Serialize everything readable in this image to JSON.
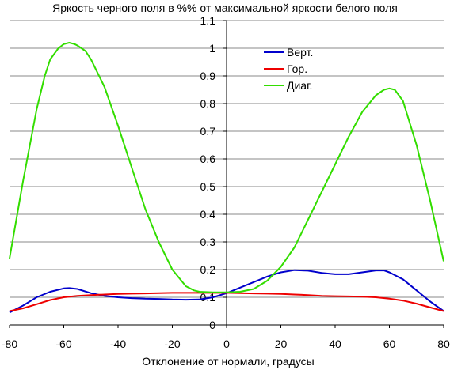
{
  "chart_data": {
    "type": "line",
    "title": "Яркость черного поля в %% от максимальной яркости белого поля",
    "xlabel": "Отклонение от нормали, градусы",
    "ylabel": "",
    "xlim": [
      -80,
      80
    ],
    "ylim": [
      0,
      1.1
    ],
    "x_ticks": [
      "-80",
      "-60",
      "-40",
      "-20",
      "0",
      "20",
      "40",
      "60",
      "80"
    ],
    "y_ticks": [
      "0",
      "0.1",
      "0.2",
      "0.3",
      "0.4",
      "0.5",
      "0.6",
      "0.7",
      "0.8",
      "0.9",
      "1",
      "1.1"
    ],
    "grid": "horizontal",
    "legend_position": "top-right",
    "series": [
      {
        "name": "Верт.",
        "color": "#0000cc",
        "x": [
          -80,
          -75,
          -70,
          -65,
          -60,
          -58,
          -55,
          -50,
          -45,
          -40,
          -35,
          -30,
          -25,
          -20,
          -15,
          -10,
          -5,
          0,
          5,
          10,
          15,
          20,
          25,
          30,
          35,
          40,
          45,
          50,
          55,
          58,
          60,
          65,
          70,
          75,
          80
        ],
        "y": [
          0.045,
          0.07,
          0.1,
          0.12,
          0.132,
          0.133,
          0.13,
          0.115,
          0.105,
          0.1,
          0.097,
          0.095,
          0.094,
          0.092,
          0.091,
          0.092,
          0.1,
          0.115,
          0.135,
          0.155,
          0.175,
          0.19,
          0.198,
          0.196,
          0.188,
          0.183,
          0.183,
          0.19,
          0.197,
          0.197,
          0.19,
          0.165,
          0.125,
          0.085,
          0.05
        ]
      },
      {
        "name": "Гор.",
        "color": "#ee0000",
        "x": [
          -80,
          -75,
          -70,
          -65,
          -60,
          -55,
          -50,
          -45,
          -40,
          -35,
          -30,
          -25,
          -20,
          -15,
          -10,
          -5,
          0,
          5,
          10,
          15,
          20,
          25,
          30,
          35,
          40,
          45,
          50,
          55,
          60,
          65,
          70,
          75,
          80
        ],
        "y": [
          0.05,
          0.06,
          0.075,
          0.09,
          0.1,
          0.105,
          0.108,
          0.11,
          0.112,
          0.113,
          0.114,
          0.115,
          0.116,
          0.116,
          0.116,
          0.116,
          0.116,
          0.115,
          0.114,
          0.113,
          0.112,
          0.11,
          0.108,
          0.105,
          0.104,
          0.103,
          0.102,
          0.1,
          0.095,
          0.088,
          0.077,
          0.063,
          0.05
        ]
      },
      {
        "name": "Диаг.",
        "color": "#33dd00",
        "x": [
          -80,
          -75,
          -70,
          -67,
          -65,
          -62,
          -60,
          -58,
          -56,
          -55,
          -52,
          -50,
          -45,
          -40,
          -35,
          -30,
          -25,
          -20,
          -15,
          -12,
          -10,
          -5,
          0,
          5,
          10,
          15,
          20,
          25,
          30,
          35,
          40,
          45,
          50,
          55,
          58,
          60,
          62,
          65,
          70,
          75,
          80
        ],
        "y": [
          0.24,
          0.52,
          0.78,
          0.9,
          0.96,
          1.0,
          1.015,
          1.02,
          1.015,
          1.01,
          0.99,
          0.96,
          0.86,
          0.72,
          0.57,
          0.42,
          0.3,
          0.2,
          0.14,
          0.125,
          0.12,
          0.118,
          0.118,
          0.12,
          0.13,
          0.16,
          0.21,
          0.28,
          0.38,
          0.48,
          0.58,
          0.68,
          0.77,
          0.83,
          0.85,
          0.855,
          0.85,
          0.81,
          0.65,
          0.45,
          0.23
        ]
      }
    ]
  }
}
